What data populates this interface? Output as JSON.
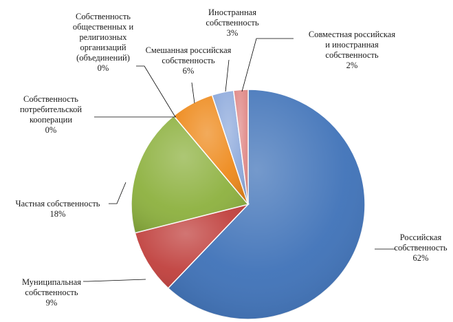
{
  "chart_data": {
    "type": "pie",
    "title": "",
    "slices": [
      {
        "label_lines": [
          "Российская",
          "собственность"
        ],
        "value": 62,
        "value_label": "62%",
        "color": "#3f72b8"
      },
      {
        "label_lines": [
          "Муниципальная",
          "собственность"
        ],
        "value": 9,
        "value_label": "9%",
        "color": "#c0403d"
      },
      {
        "label_lines": [
          "Частная собственность"
        ],
        "value": 18,
        "value_label": "18%",
        "color": "#8db13f"
      },
      {
        "label_lines": [
          "Собственность",
          "потребительской",
          "кооперации"
        ],
        "value": 0,
        "value_label": "0%",
        "color": "#6e4f9a"
      },
      {
        "label_lines": [
          "Собственность",
          "общественных и",
          "религиозных",
          "организаций",
          "(объединений)"
        ],
        "value": 0,
        "value_label": "0%",
        "color": "#2e9bb3"
      },
      {
        "label_lines": [
          "Смешанная российская",
          "собственность"
        ],
        "value": 6,
        "value_label": "6%",
        "color": "#ee8a1c"
      },
      {
        "label_lines": [
          "Иностранная",
          "собственность"
        ],
        "value": 3,
        "value_label": "3%",
        "color": "#8eaadc"
      },
      {
        "label_lines": [
          "Совместная российская",
          "и иностранная",
          "собственность"
        ],
        "value": 2,
        "value_label": "2%",
        "color": "#e08a88"
      }
    ]
  }
}
